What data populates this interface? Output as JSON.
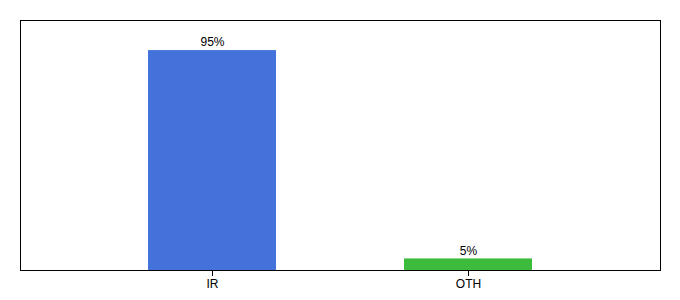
{
  "chart_data": {
    "type": "bar",
    "categories": [
      "IR",
      "OTH"
    ],
    "values": [
      95,
      5
    ],
    "value_labels": [
      "95%",
      "5%"
    ],
    "colors": [
      "#4472db",
      "#3dbb3d"
    ],
    "ylim": [
      0,
      108
    ],
    "yticks": [],
    "data_labels": true,
    "tick_labels": "x",
    "grid": false
  }
}
